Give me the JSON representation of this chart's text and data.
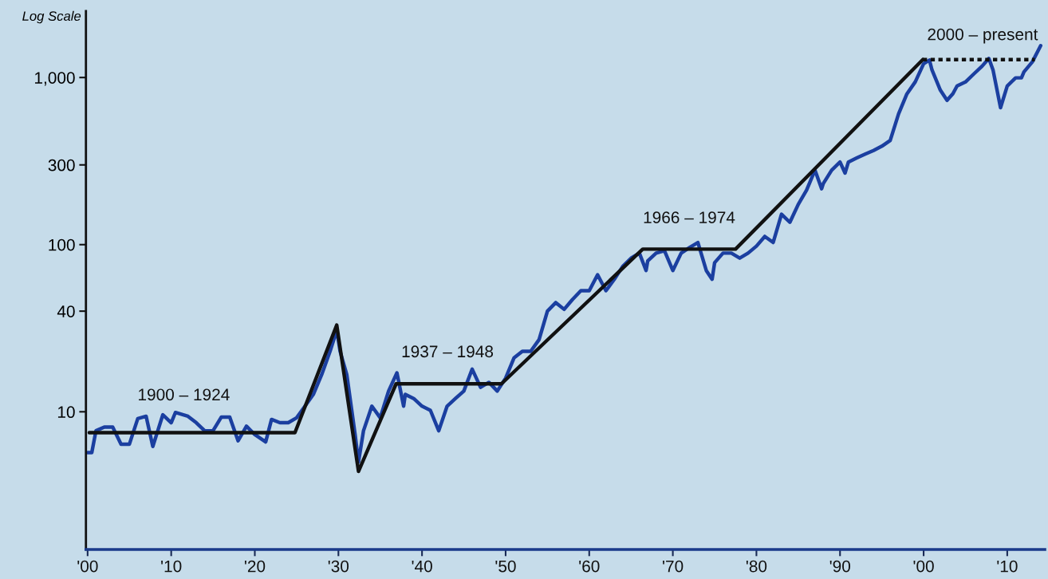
{
  "chart_data": {
    "type": "line",
    "ylabel": "Log Scale",
    "log": true,
    "grid": false,
    "marker": "none",
    "xlim": [
      1899.8,
      2014.5
    ],
    "ylim": [
      1.5,
      2500
    ],
    "xticks": [
      {
        "value": 1900,
        "label": "'00"
      },
      {
        "value": 1910,
        "label": "'10"
      },
      {
        "value": 1920,
        "label": "'20"
      },
      {
        "value": 1930,
        "label": "'30"
      },
      {
        "value": 1940,
        "label": "'40"
      },
      {
        "value": 1950,
        "label": "'50"
      },
      {
        "value": 1960,
        "label": "'60"
      },
      {
        "value": 1970,
        "label": "'70"
      },
      {
        "value": 1980,
        "label": "'80"
      },
      {
        "value": 1990,
        "label": "'90"
      },
      {
        "value": 2000,
        "label": "'00"
      },
      {
        "value": 2010,
        "label": "'10"
      }
    ],
    "yticks": [
      10,
      40,
      100,
      300,
      {
        "value": 1000,
        "label": "1,000"
      }
    ],
    "series": [
      {
        "color": "#1b3fa0",
        "line_style": "solid",
        "x": [
          1900,
          1900.5,
          1901,
          1902,
          1903,
          1904,
          1905,
          1906,
          1907,
          1907.8,
          1909,
          1910,
          1910.5,
          1912,
          1913,
          1914,
          1915,
          1916,
          1917,
          1918,
          1919,
          1920,
          1921.3,
          1922,
          1923,
          1924,
          1925,
          1926,
          1927,
          1928,
          1929,
          1929.8,
          1930.2,
          1931,
          1932,
          1932.4,
          1933,
          1934,
          1935,
          1936,
          1937,
          1937.8,
          1938,
          1939,
          1940,
          1941,
          1942,
          1943,
          1944,
          1945,
          1946,
          1947,
          1948,
          1949,
          1950,
          1951,
          1952,
          1953,
          1954,
          1955,
          1956,
          1957,
          1958,
          1959,
          1960,
          1961,
          1962,
          1963,
          1964,
          1965,
          1966,
          1966.8,
          1967,
          1968,
          1969,
          1970,
          1971,
          1972,
          1973,
          1974,
          1974.7,
          1975,
          1976,
          1977,
          1978,
          1979,
          1980,
          1981,
          1982,
          1983,
          1984,
          1985,
          1986,
          1987,
          1987.8,
          1988,
          1989,
          1990,
          1990.6,
          1991,
          1992,
          1993,
          1994,
          1995,
          1996,
          1997,
          1998,
          1999,
          2000,
          2000.7,
          2001,
          2002,
          2002.8,
          2003.5,
          2004,
          2005,
          2006,
          2007,
          2007.8,
          2008.3,
          2009.2,
          2010,
          2011,
          2011.7,
          2012,
          2013,
          2014
        ],
        "values": [
          5.7,
          5.7,
          7.7,
          8.1,
          8.1,
          6.4,
          6.4,
          9.1,
          9.4,
          6.2,
          9.6,
          8.6,
          9.9,
          9.4,
          8.6,
          7.7,
          7.7,
          9.3,
          9.3,
          6.7,
          8.2,
          7.3,
          6.6,
          9.0,
          8.6,
          8.6,
          9.2,
          10.8,
          12.7,
          16.7,
          23,
          30.7,
          23,
          16.7,
          7.3,
          5.0,
          7.7,
          10.8,
          9.2,
          13.3,
          17.1,
          10.8,
          12.7,
          12,
          10.8,
          10.2,
          7.7,
          10.8,
          12,
          13.3,
          18,
          14,
          15,
          13.3,
          15.9,
          21,
          23,
          23,
          27,
          40,
          45,
          41,
          47,
          53,
          53,
          66,
          53,
          62,
          74,
          83,
          89,
          70,
          80,
          89,
          92,
          70,
          89,
          96,
          103,
          70,
          62,
          78,
          89,
          89,
          83,
          89,
          98,
          112,
          103,
          152,
          136,
          174,
          212,
          279,
          216,
          232,
          279,
          312,
          268,
          312,
          330,
          348,
          366,
          388,
          420,
          605,
          798,
          942,
          1210,
          1270,
          1110,
          840,
          730,
          800,
          890,
          940,
          1050,
          1170,
          1300,
          1110,
          660,
          890,
          995,
          995,
          1080,
          1240,
          1550
        ]
      },
      {
        "color": "#111111",
        "line_style": "solid",
        "x": [
          1900.2,
          1924.8,
          1929.8,
          1932.4,
          1936.9,
          1949.5,
          1966.4,
          1977.5,
          1999.9
        ],
        "values": [
          7.5,
          7.5,
          33,
          4.4,
          14.7,
          14.7,
          94,
          94,
          1280
        ]
      },
      {
        "color": "#111111",
        "line_style": "dotted",
        "x": [
          1999.9,
          2013.3
        ],
        "values": [
          1280,
          1280
        ]
      }
    ],
    "annotations": [
      "1900 – 1924",
      "1937 – 1948",
      "1966 – 1974",
      "2000 – present"
    ]
  }
}
